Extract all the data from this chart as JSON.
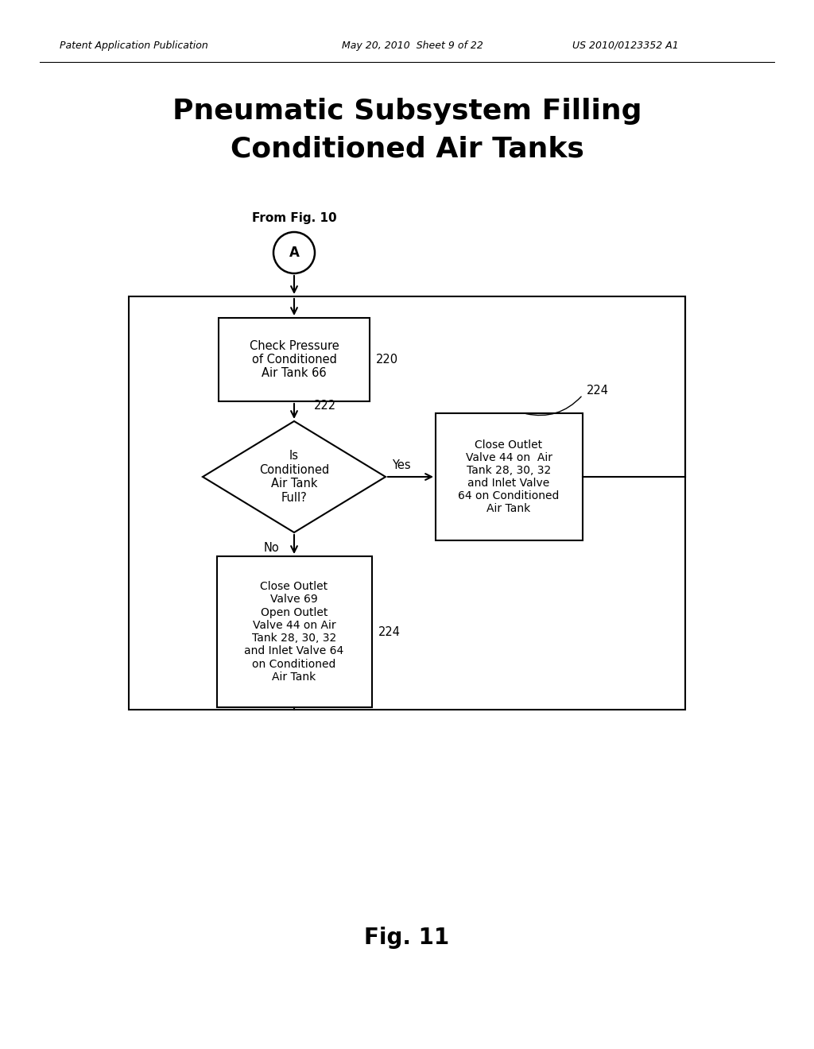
{
  "bg_color": "#ffffff",
  "header_left": "Patent Application Publication",
  "header_mid": "May 20, 2010  Sheet 9 of 22",
  "header_right": "US 2010/0123352 A1",
  "title_line1": "Pneumatic Subsystem Filling",
  "title_line2": "Conditioned Air Tanks",
  "fig_label": "Fig. 11",
  "from_label": "From Fig. 10",
  "connector_label": "A",
  "box1_text": "Check Pressure\nof Conditioned\nAir Tank 66",
  "box1_label": "220",
  "diamond_text": "Is\nConditioned\nAir Tank\nFull?",
  "diamond_label": "222",
  "yes_label": "Yes",
  "no_label": "No",
  "box_right_text": "Close Outlet\nValve 44 on  Air\nTank 28, 30, 32\nand Inlet Valve\n64 on Conditioned\nAir Tank",
  "box_right_label": "224",
  "box_bottom_text": "Close Outlet\nValve 69\nOpen Outlet\nValve 44 on Air\nTank 28, 30, 32\nand Inlet Valve 64\non Conditioned\nAir Tank",
  "box_bottom_label": "224"
}
